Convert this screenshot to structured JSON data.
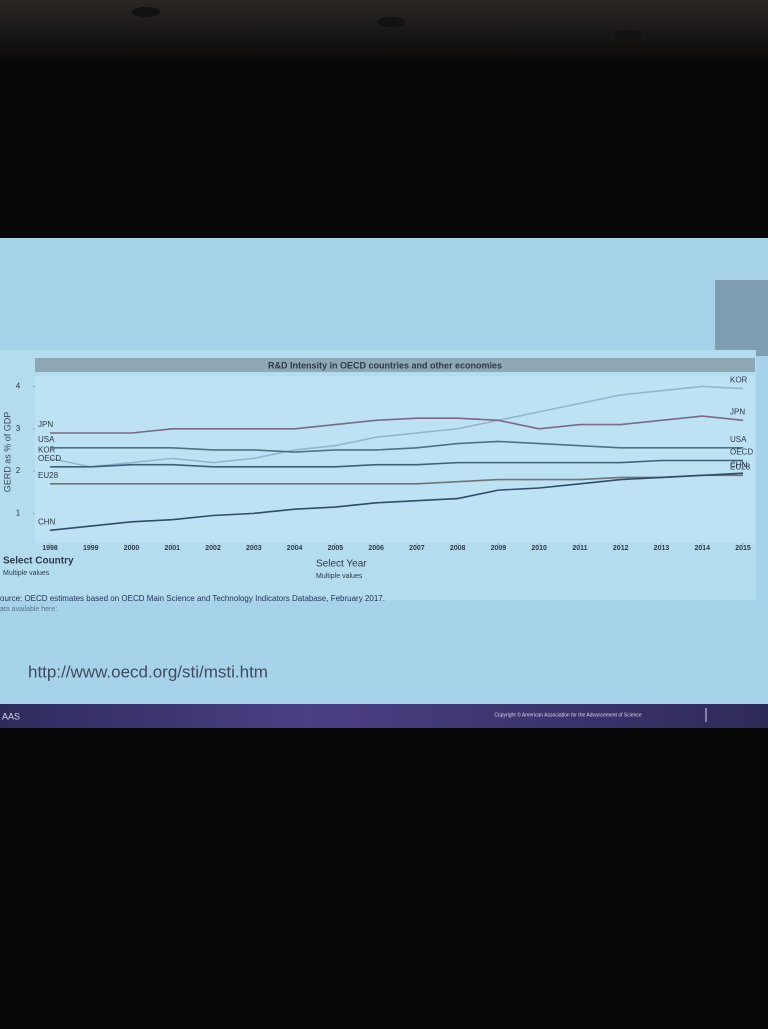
{
  "chart_data": {
    "type": "line",
    "title": "R&D Intensity in OECD countries and other economies",
    "y_label": "GERD as % of GDP",
    "x": [
      1998,
      1999,
      2000,
      2001,
      2002,
      2003,
      2004,
      2005,
      2006,
      2007,
      2008,
      2009,
      2010,
      2011,
      2012,
      2013,
      2014,
      2015
    ],
    "xlim": [
      1998,
      2015
    ],
    "xticks": [
      1998,
      1999,
      2000,
      2001,
      2002,
      2003,
      2004,
      2005,
      2006,
      2007,
      2008,
      2009,
      2010,
      2011,
      2012,
      2013,
      2014,
      2015
    ],
    "ylim": [
      0.3,
      4.2
    ],
    "yticks": [
      1,
      2,
      3,
      4
    ],
    "series": [
      {
        "name": "KOR",
        "color": "#8fb6cc",
        "values": [
          2.3,
          2.1,
          2.2,
          2.3,
          2.2,
          2.3,
          2.5,
          2.6,
          2.8,
          2.9,
          3.0,
          3.2,
          3.4,
          3.6,
          3.8,
          3.9,
          4.0,
          3.95
        ]
      },
      {
        "name": "JPN",
        "color": "#7a6a86",
        "values": [
          2.9,
          2.9,
          2.9,
          3.0,
          3.0,
          3.0,
          3.0,
          3.1,
          3.2,
          3.25,
          3.25,
          3.2,
          3.0,
          3.1,
          3.1,
          3.2,
          3.3,
          3.2
        ]
      },
      {
        "name": "USA",
        "color": "#4f7284",
        "values": [
          2.55,
          2.55,
          2.55,
          2.55,
          2.5,
          2.5,
          2.45,
          2.5,
          2.5,
          2.55,
          2.65,
          2.7,
          2.65,
          2.6,
          2.55,
          2.55,
          2.55,
          2.55
        ]
      },
      {
        "name": "OECD",
        "color": "#3e5f7a",
        "values": [
          2.1,
          2.1,
          2.15,
          2.15,
          2.1,
          2.1,
          2.1,
          2.1,
          2.15,
          2.15,
          2.2,
          2.2,
          2.2,
          2.2,
          2.2,
          2.25,
          2.25,
          2.25
        ]
      },
      {
        "name": "EU28",
        "color": "#6f7677",
        "values": [
          1.7,
          1.7,
          1.7,
          1.7,
          1.7,
          1.7,
          1.7,
          1.7,
          1.7,
          1.7,
          1.75,
          1.8,
          1.8,
          1.8,
          1.85,
          1.85,
          1.9,
          1.9
        ]
      },
      {
        "name": "CHN",
        "color": "#2f4c6a",
        "values": [
          0.6,
          0.7,
          0.8,
          0.85,
          0.95,
          1.0,
          1.1,
          1.15,
          1.25,
          1.3,
          1.35,
          1.55,
          1.6,
          1.7,
          1.8,
          1.85,
          1.9,
          1.95
        ]
      }
    ],
    "grid": false
  },
  "slide": {
    "country_control": "Select Country",
    "country_value": "Multiple values",
    "year_control": "Select Year",
    "year_value": "Multiple values",
    "source": "ource: OECD estimates based on OECD Main Science and Technology Indicators Database, February 2017.",
    "data_note": "ata available here:",
    "url": "http://www.oecd.org/sti/msti.htm",
    "org": "AAS",
    "copyright": "Copyright © American Association for the Advancement of Science"
  }
}
